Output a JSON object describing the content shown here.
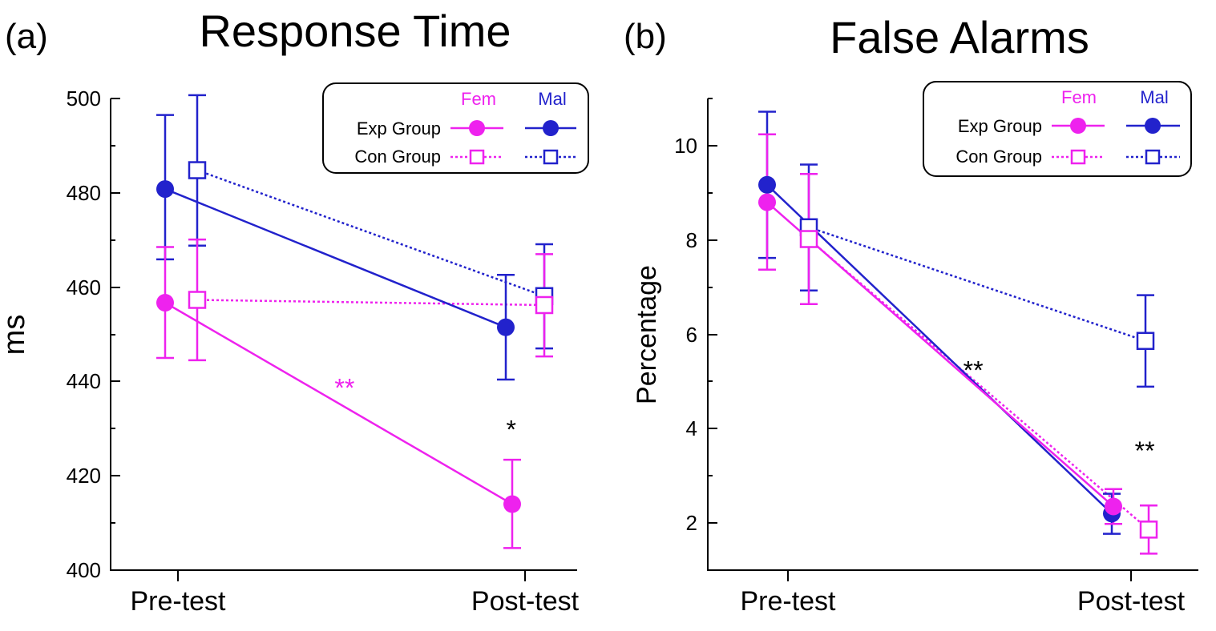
{
  "colors": {
    "female": "#ee22ee",
    "male": "#2222cc",
    "axis": "#000000",
    "star": "#000000"
  },
  "chart_data": [
    {
      "type": "line",
      "panel_label": "(a)",
      "title": "Response Time",
      "ylabel": "ms",
      "xlabel": "",
      "categories": [
        "Pre-test",
        "Post-test"
      ],
      "ylim": [
        400,
        500
      ],
      "yticks": [
        "400",
        "420",
        "440",
        "460",
        "480",
        "500"
      ],
      "legend": {
        "position": "top-right",
        "col_labels": [
          "Fem",
          "Mal"
        ],
        "row_labels": [
          "Exp Group",
          "Con Group"
        ]
      },
      "series": [
        {
          "name": "Exp Group Fem",
          "group": "Exp",
          "sex": "Fem",
          "values": [
            456.7,
            414.0
          ],
          "err_lo": [
            445.0,
            404.7
          ],
          "err_hi": [
            468.5,
            423.4
          ]
        },
        {
          "name": "Exp Group Mal",
          "group": "Exp",
          "sex": "Mal",
          "values": [
            480.8,
            451.5
          ],
          "err_lo": [
            465.9,
            440.4
          ],
          "err_hi": [
            496.5,
            462.6
          ]
        },
        {
          "name": "Con Group Fem",
          "group": "Con",
          "sex": "Fem",
          "values": [
            457.3,
            456.2
          ],
          "err_lo": [
            444.5,
            445.3
          ],
          "err_hi": [
            470.1,
            467.0
          ]
        },
        {
          "name": "Con Group Mal",
          "group": "Con",
          "sex": "Mal",
          "values": [
            484.8,
            458.1
          ],
          "err_lo": [
            468.8,
            447.0
          ],
          "err_hi": [
            500.7,
            469.1
          ]
        }
      ],
      "annotations": [
        {
          "text": "**",
          "color": "female",
          "x": 0.48,
          "y": 438.8
        },
        {
          "text": "*",
          "color": "star",
          "x": 0.96,
          "y": 430.0
        }
      ]
    },
    {
      "type": "line",
      "panel_label": "(b)",
      "title": "False Alarms",
      "ylabel": "Percentage",
      "xlabel": "",
      "categories": [
        "Pre-test",
        "Post-test"
      ],
      "ylim": [
        1,
        11
      ],
      "yticks": [
        "2",
        "4",
        "6",
        "8",
        "10"
      ],
      "legend": {
        "position": "top-right",
        "col_labels": [
          "Fem",
          "Mal"
        ],
        "row_labels": [
          "Exp Group",
          "Con Group"
        ]
      },
      "series": [
        {
          "name": "Exp Group Fem",
          "group": "Exp",
          "sex": "Fem",
          "values": [
            8.8,
            2.35
          ],
          "err_lo": [
            7.37,
            1.98
          ],
          "err_hi": [
            10.24,
            2.72
          ]
        },
        {
          "name": "Exp Group Mal",
          "group": "Exp",
          "sex": "Mal",
          "values": [
            9.17,
            2.2
          ],
          "err_lo": [
            7.62,
            1.77
          ],
          "err_hi": [
            10.72,
            2.62
          ]
        },
        {
          "name": "Con Group Fem",
          "group": "Con",
          "sex": "Fem",
          "values": [
            8.02,
            1.86
          ],
          "err_lo": [
            6.64,
            1.35
          ],
          "err_hi": [
            9.4,
            2.37
          ]
        },
        {
          "name": "Con Group Mal",
          "group": "Con",
          "sex": "Mal",
          "values": [
            8.27,
            5.86
          ],
          "err_lo": [
            6.93,
            4.89
          ],
          "err_hi": [
            9.6,
            6.83
          ]
        }
      ],
      "annotations": [
        {
          "text": "**",
          "color": "star",
          "x": 0.54,
          "y": 5.25
        },
        {
          "text": "**",
          "color": "star",
          "x": 1.04,
          "y": 3.55
        }
      ]
    }
  ]
}
